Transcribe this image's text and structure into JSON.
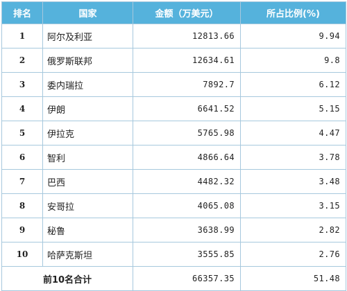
{
  "table": {
    "headers": [
      "排名",
      "国家",
      "金额（万美元）",
      "所占比例(%)"
    ],
    "rows": [
      {
        "rank": "1",
        "country": "阿尔及利亚",
        "amount": "12813.66",
        "share": "9.94"
      },
      {
        "rank": "2",
        "country": "俄罗斯联邦",
        "amount": "12634.61",
        "share": "9.8"
      },
      {
        "rank": "3",
        "country": "委内瑞拉",
        "amount": "7892.7",
        "share": "6.12"
      },
      {
        "rank": "4",
        "country": "伊朗",
        "amount": "6641.52",
        "share": "5.15"
      },
      {
        "rank": "5",
        "country": "伊拉克",
        "amount": "5765.98",
        "share": "4.47"
      },
      {
        "rank": "6",
        "country": "智利",
        "amount": "4866.64",
        "share": "3.78"
      },
      {
        "rank": "7",
        "country": "巴西",
        "amount": "4482.32",
        "share": "3.48"
      },
      {
        "rank": "8",
        "country": "安哥拉",
        "amount": "4065.08",
        "share": "3.15"
      },
      {
        "rank": "9",
        "country": "秘鲁",
        "amount": "3638.99",
        "share": "2.82"
      },
      {
        "rank": "10",
        "country": "哈萨克斯坦",
        "amount": "3555.85",
        "share": "2.76"
      }
    ],
    "total": {
      "label": "前10名合计",
      "amount": "66357.35",
      "share": "51.48"
    }
  }
}
